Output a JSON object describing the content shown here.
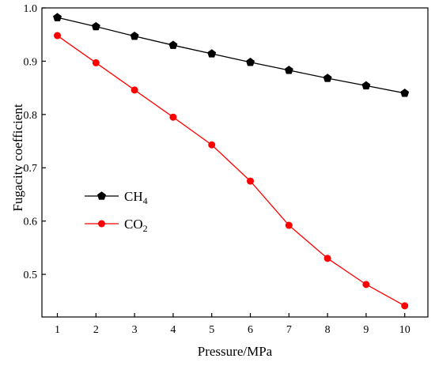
{
  "chart_data": {
    "type": "line",
    "title": "",
    "xlabel": "Pressure/MPa",
    "ylabel": "Fugacity coefficient",
    "x": [
      1,
      2,
      3,
      4,
      5,
      6,
      7,
      8,
      9,
      10
    ],
    "xlim": [
      0.6,
      10.6
    ],
    "ylim": [
      0.42,
      1.0
    ],
    "xticks": [
      1,
      2,
      3,
      4,
      5,
      6,
      7,
      8,
      9,
      10
    ],
    "yticks": [
      0.5,
      0.6,
      0.7,
      0.8,
      0.9,
      1.0
    ],
    "ytick_labels": [
      "0.5",
      "0.6",
      "0.7",
      "0.8",
      "0.9",
      "1.0"
    ],
    "grid": false,
    "legend_position": "center-left",
    "series": [
      {
        "name_main": "CH",
        "name_sub": "4",
        "color": "#000000",
        "marker": "pentagon",
        "values": [
          0.982,
          0.965,
          0.947,
          0.93,
          0.914,
          0.898,
          0.883,
          0.868,
          0.854,
          0.84
        ]
      },
      {
        "name_main": "CO",
        "name_sub": "2",
        "color": "#ff0000",
        "marker": "circle",
        "values": [
          0.948,
          0.897,
          0.846,
          0.795,
          0.743,
          0.675,
          0.592,
          0.53,
          0.481,
          0.441
        ]
      }
    ]
  }
}
